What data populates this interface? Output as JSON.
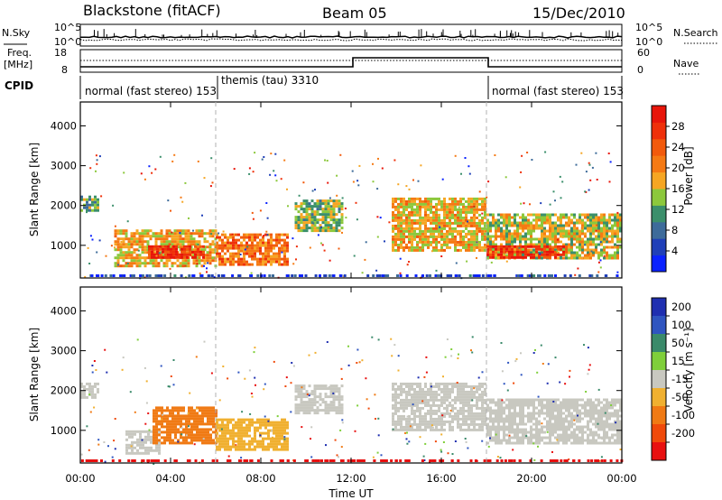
{
  "header": {
    "station": "Blackstone (fitACF)",
    "beam": "Beam 05",
    "date": "15/Dec/2010"
  },
  "top_panels": {
    "nsky_label": "N.Sky",
    "nsearch_label": "N.Search",
    "nsky_ticks": [
      "10^5",
      "10^0"
    ],
    "freq_label_1": "Freq.",
    "freq_label_2": "[MHz]",
    "freq_ticks": [
      "18",
      "8"
    ],
    "nave_label": "Nave",
    "nave_ticks": [
      "60",
      "0"
    ],
    "cpid_label": "CPID",
    "cpid_segments": [
      {
        "name": "normal (fast stereo) 153",
        "start_hour": 0,
        "end_hour": 6
      },
      {
        "name": "themis (tau) 3310",
        "start_hour": 6,
        "end_hour": 18
      },
      {
        "name": "normal (fast stereo) 153",
        "start_hour": 18,
        "end_hour": 24
      }
    ]
  },
  "axes": {
    "x_label": "Time UT",
    "x_ticks": [
      "00:00",
      "04:00",
      "08:00",
      "12:00",
      "16:00",
      "20:00",
      "00:00"
    ],
    "y_label": "Slant Range [km]",
    "y_ticks": [
      "1000",
      "2000",
      "3000",
      "4000"
    ]
  },
  "power_scale": {
    "label": "Power [dB]",
    "ticks": [
      "4",
      "8",
      "12",
      "16",
      "20",
      "24",
      "28"
    ],
    "colors": [
      "#0a22ff",
      "#1f3fb8",
      "#3d6b9a",
      "#3b8f6b",
      "#8cc83c",
      "#f6a623",
      "#f57a14",
      "#f25a0c",
      "#ef300a",
      "#e8150a"
    ]
  },
  "velocity_scale": {
    "label": "Velocity [m s⁻¹]",
    "ticks": [
      "200",
      "100",
      "50",
      "15",
      "-15",
      "-50",
      "-100",
      "-200"
    ],
    "colors": [
      "#1f2fb0",
      "#2f55c0",
      "#3a8a6a",
      "#7fcf3a",
      "#c8c8c0",
      "#f0b030",
      "#f07a14",
      "#f04a0a",
      "#e81010"
    ]
  },
  "chart_data": [
    {
      "type": "heatmap",
      "title": "Power",
      "xlabel": "Time UT",
      "ylabel": "Slant Range [km]",
      "xlim": [
        0,
        24
      ],
      "ylim": [
        180,
        4600
      ],
      "colorbar": {
        "label": "Power [dB]",
        "range": [
          0,
          32
        ]
      },
      "regions": [
        {
          "t0": 0.0,
          "t1": 0.8,
          "r0": 1850,
          "r1": 2250,
          "value": 12
        },
        {
          "t0": 1.5,
          "t1": 6.0,
          "r0": 500,
          "r1": 1400,
          "value": 18
        },
        {
          "t0": 3.0,
          "t1": 5.5,
          "r0": 700,
          "r1": 1000,
          "value": 28
        },
        {
          "t0": 6.0,
          "t1": 9.2,
          "r0": 550,
          "r1": 1300,
          "value": 22
        },
        {
          "t0": 9.5,
          "t1": 11.6,
          "r0": 1400,
          "r1": 2150,
          "value": 14
        },
        {
          "t0": 13.8,
          "t1": 17.9,
          "r0": 900,
          "r1": 2200,
          "value": 18
        },
        {
          "t0": 18.0,
          "t1": 23.9,
          "r0": 700,
          "r1": 1800,
          "value": 16
        },
        {
          "t0": 18.0,
          "t1": 21.5,
          "r0": 700,
          "r1": 1000,
          "value": 28
        }
      ]
    },
    {
      "type": "heatmap",
      "title": "Velocity",
      "xlabel": "Time UT",
      "ylabel": "Slant Range [km]",
      "xlim": [
        0,
        24
      ],
      "ylim": [
        180,
        4600
      ],
      "colorbar": {
        "label": "Velocity [m s⁻¹]",
        "range": [
          -250,
          250
        ]
      },
      "regions": [
        {
          "t0": 0.0,
          "t1": 0.8,
          "r0": 1850,
          "r1": 2200,
          "value": 0
        },
        {
          "t0": 2.0,
          "t1": 3.5,
          "r0": 400,
          "r1": 1000,
          "value": 0
        },
        {
          "t0": 3.2,
          "t1": 6.0,
          "r0": 650,
          "r1": 1600,
          "value": -100
        },
        {
          "t0": 6.0,
          "t1": 9.2,
          "r0": 550,
          "r1": 1300,
          "value": -60
        },
        {
          "t0": 9.5,
          "t1": 11.6,
          "r0": 1450,
          "r1": 2150,
          "value": 0
        },
        {
          "t0": 13.8,
          "t1": 17.9,
          "r0": 1000,
          "r1": 2200,
          "value": 0
        },
        {
          "t0": 18.0,
          "t1": 23.9,
          "r0": 700,
          "r1": 1800,
          "value": 0
        }
      ]
    }
  ]
}
